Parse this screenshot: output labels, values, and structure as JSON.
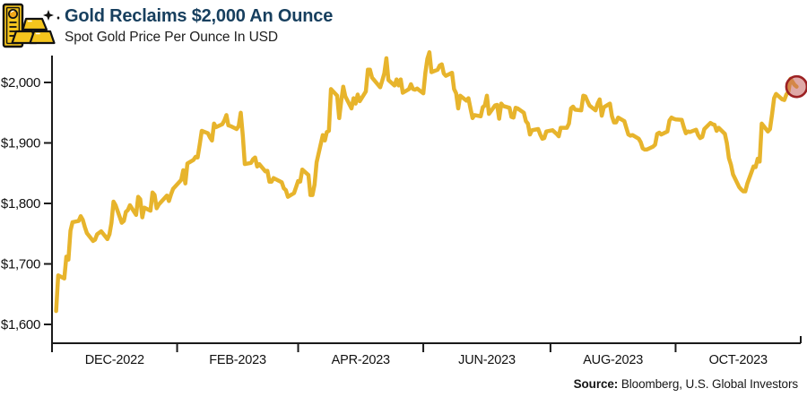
{
  "header": {
    "title": "Gold Reclaims $2,000 An Ounce",
    "subtitle": "Spot Gold Price Per Ounce In USD",
    "icon": "gold-bars-icon"
  },
  "footer": {
    "source_label": "Source:",
    "source_text": " Bloomberg, U.S. Global Investors"
  },
  "colors": {
    "title": "#173F5E",
    "axis": "#1a1a1a",
    "tick_label": "#111111",
    "line": "#E7B42C",
    "annotation_stroke": "#9C2123",
    "annotation_fill": "#C4635E",
    "icon_gold": "#F5C51D",
    "icon_outline": "#111111"
  },
  "chart_data": {
    "type": "line",
    "title": "Gold Reclaims $2,000 An Ounce",
    "subtitle": "Spot Gold Price Per Ounce In USD",
    "xlabel": "",
    "ylabel": "",
    "grid": false,
    "legend": "none",
    "x_range": [
      "2022-11-01",
      "2023-11-01"
    ],
    "x_range_days": [
      0,
      365
    ],
    "ylim": [
      1600,
      2060
    ],
    "y_axis": {
      "ticks": [
        {
          "text": "$2,000",
          "value": 2000
        },
        {
          "text": "$1,900",
          "value": 1900
        },
        {
          "text": "$1,800",
          "value": 1800
        },
        {
          "text": "$1,700",
          "value": 1700
        },
        {
          "text": "$1,600",
          "value": 1600
        }
      ]
    },
    "x_axis": {
      "boundary_tick_days": [
        0,
        61,
        120,
        181,
        243,
        304,
        365
      ],
      "labels": [
        {
          "text": "DEC-2022",
          "day": 30.5
        },
        {
          "text": "FEB-2023",
          "day": 90.5
        },
        {
          "text": "APR-2023",
          "day": 150.5
        },
        {
          "text": "JUN-2023",
          "day": 212
        },
        {
          "text": "AUG-2023",
          "day": 273.5
        },
        {
          "text": "OCT-2023",
          "day": 334.5
        }
      ]
    },
    "annotation": {
      "shape": "circle",
      "day": 363,
      "value": 1993
    },
    "series": [
      {
        "name": "Spot Gold Price (USD/oz)",
        "x_unit": "days since 2022-11-01",
        "points": [
          [
            2,
            1622
          ],
          [
            3,
            1681
          ],
          [
            6,
            1676
          ],
          [
            7,
            1712
          ],
          [
            8,
            1707
          ],
          [
            9,
            1755
          ],
          [
            10,
            1769
          ],
          [
            13,
            1771
          ],
          [
            14,
            1779
          ],
          [
            15,
            1773
          ],
          [
            16,
            1761
          ],
          [
            17,
            1751
          ],
          [
            20,
            1738
          ],
          [
            21,
            1740
          ],
          [
            22,
            1749
          ],
          [
            24,
            1754
          ],
          [
            27,
            1741
          ],
          [
            28,
            1749
          ],
          [
            29,
            1768
          ],
          [
            30,
            1803
          ],
          [
            31,
            1797
          ],
          [
            34,
            1768
          ],
          [
            35,
            1771
          ],
          [
            36,
            1786
          ],
          [
            37,
            1789
          ],
          [
            38,
            1797
          ],
          [
            41,
            1781
          ],
          [
            42,
            1811
          ],
          [
            43,
            1807
          ],
          [
            44,
            1777
          ],
          [
            45,
            1793
          ],
          [
            48,
            1788
          ],
          [
            49,
            1818
          ],
          [
            50,
            1814
          ],
          [
            51,
            1792
          ],
          [
            52,
            1798
          ],
          [
            56,
            1813
          ],
          [
            57,
            1804
          ],
          [
            58,
            1815
          ],
          [
            59,
            1824
          ],
          [
            63,
            1839
          ],
          [
            64,
            1855
          ],
          [
            65,
            1833
          ],
          [
            66,
            1866
          ],
          [
            69,
            1872
          ],
          [
            70,
            1877
          ],
          [
            71,
            1876
          ],
          [
            72,
            1897
          ],
          [
            73,
            1920
          ],
          [
            76,
            1916
          ],
          [
            77,
            1909
          ],
          [
            78,
            1904
          ],
          [
            79,
            1932
          ],
          [
            80,
            1926
          ],
          [
            83,
            1931
          ],
          [
            84,
            1937
          ],
          [
            85,
            1946
          ],
          [
            86,
            1929
          ],
          [
            87,
            1928
          ],
          [
            90,
            1923
          ],
          [
            91,
            1928
          ],
          [
            92,
            1950
          ],
          [
            93,
            1912
          ],
          [
            94,
            1865
          ],
          [
            97,
            1867
          ],
          [
            98,
            1873
          ],
          [
            99,
            1876
          ],
          [
            100,
            1861
          ],
          [
            101,
            1865
          ],
          [
            104,
            1853
          ],
          [
            105,
            1854
          ],
          [
            106,
            1836
          ],
          [
            107,
            1836
          ],
          [
            108,
            1842
          ],
          [
            112,
            1835
          ],
          [
            113,
            1825
          ],
          [
            114,
            1822
          ],
          [
            115,
            1811
          ],
          [
            118,
            1817
          ],
          [
            119,
            1827
          ],
          [
            120,
            1837
          ],
          [
            121,
            1836
          ],
          [
            122,
            1856
          ],
          [
            125,
            1847
          ],
          [
            126,
            1814
          ],
          [
            127,
            1814
          ],
          [
            128,
            1831
          ],
          [
            129,
            1868
          ],
          [
            132,
            1913
          ],
          [
            133,
            1904
          ],
          [
            134,
            1918
          ],
          [
            135,
            1920
          ],
          [
            136,
            1989
          ],
          [
            139,
            1978
          ],
          [
            140,
            1941
          ],
          [
            141,
            1970
          ],
          [
            142,
            1993
          ],
          [
            143,
            1977
          ],
          [
            146,
            1957
          ],
          [
            147,
            1974
          ],
          [
            148,
            1965
          ],
          [
            149,
            1980
          ],
          [
            150,
            1969
          ],
          [
            153,
            1985
          ],
          [
            154,
            2021
          ],
          [
            155,
            2021
          ],
          [
            156,
            2008
          ],
          [
            160,
            1992
          ],
          [
            161,
            2003
          ],
          [
            162,
            2015
          ],
          [
            163,
            2040
          ],
          [
            164,
            2004
          ],
          [
            167,
            1995
          ],
          [
            168,
            2005
          ],
          [
            169,
            1995
          ],
          [
            170,
            2005
          ],
          [
            171,
            1983
          ],
          [
            174,
            1989
          ],
          [
            175,
            1997
          ],
          [
            176,
            1989
          ],
          [
            177,
            1988
          ],
          [
            178,
            1990
          ],
          [
            181,
            1982
          ],
          [
            182,
            2016
          ],
          [
            183,
            2039
          ],
          [
            184,
            2050
          ],
          [
            185,
            2017
          ],
          [
            188,
            2021
          ],
          [
            189,
            2028
          ],
          [
            190,
            2030
          ],
          [
            191,
            2015
          ],
          [
            192,
            2011
          ],
          [
            195,
            2016
          ],
          [
            196,
            1989
          ],
          [
            197,
            1982
          ],
          [
            198,
            1957
          ],
          [
            199,
            1978
          ],
          [
            202,
            1970
          ],
          [
            203,
            1974
          ],
          [
            204,
            1957
          ],
          [
            205,
            1941
          ],
          [
            206,
            1946
          ],
          [
            209,
            1944
          ],
          [
            210,
            1959
          ],
          [
            211,
            1962
          ],
          [
            212,
            1978
          ],
          [
            213,
            1948
          ],
          [
            216,
            1962
          ],
          [
            217,
            1963
          ],
          [
            218,
            1940
          ],
          [
            219,
            1965
          ],
          [
            220,
            1961
          ],
          [
            223,
            1958
          ],
          [
            224,
            1943
          ],
          [
            225,
            1942
          ],
          [
            226,
            1958
          ],
          [
            227,
            1957
          ],
          [
            230,
            1950
          ],
          [
            231,
            1936
          ],
          [
            232,
            1932
          ],
          [
            233,
            1914
          ],
          [
            234,
            1921
          ],
          [
            237,
            1923
          ],
          [
            238,
            1914
          ],
          [
            239,
            1907
          ],
          [
            240,
            1908
          ],
          [
            241,
            1919
          ],
          [
            244,
            1921
          ],
          [
            246,
            1915
          ],
          [
            247,
            1911
          ],
          [
            248,
            1925
          ],
          [
            251,
            1925
          ],
          [
            252,
            1932
          ],
          [
            253,
            1957
          ],
          [
            254,
            1960
          ],
          [
            255,
            1955
          ],
          [
            258,
            1954
          ],
          [
            259,
            1978
          ],
          [
            260,
            1977
          ],
          [
            261,
            1969
          ],
          [
            262,
            1962
          ],
          [
            265,
            1954
          ],
          [
            266,
            1965
          ],
          [
            267,
            1972
          ],
          [
            268,
            1945
          ],
          [
            269,
            1959
          ],
          [
            272,
            1965
          ],
          [
            273,
            1944
          ],
          [
            274,
            1934
          ],
          [
            275,
            1934
          ],
          [
            276,
            1942
          ],
          [
            279,
            1936
          ],
          [
            280,
            1925
          ],
          [
            281,
            1914
          ],
          [
            282,
            1912
          ],
          [
            283,
            1913
          ],
          [
            286,
            1907
          ],
          [
            287,
            1901
          ],
          [
            288,
            1891
          ],
          [
            289,
            1889
          ],
          [
            290,
            1889
          ],
          [
            293,
            1894
          ],
          [
            294,
            1897
          ],
          [
            295,
            1915
          ],
          [
            296,
            1917
          ],
          [
            297,
            1914
          ],
          [
            300,
            1919
          ],
          [
            301,
            1937
          ],
          [
            302,
            1942
          ],
          [
            303,
            1940
          ],
          [
            304,
            1939
          ],
          [
            307,
            1938
          ],
          [
            308,
            1926
          ],
          [
            309,
            1916
          ],
          [
            310,
            1919
          ],
          [
            311,
            1918
          ],
          [
            314,
            1922
          ],
          [
            315,
            1913
          ],
          [
            316,
            1908
          ],
          [
            317,
            1910
          ],
          [
            318,
            1923
          ],
          [
            321,
            1933
          ],
          [
            322,
            1931
          ],
          [
            323,
            1930
          ],
          [
            324,
            1920
          ],
          [
            325,
            1925
          ],
          [
            328,
            1915
          ],
          [
            329,
            1900
          ],
          [
            330,
            1875
          ],
          [
            331,
            1864
          ],
          [
            332,
            1848
          ],
          [
            335,
            1827
          ],
          [
            336,
            1823
          ],
          [
            337,
            1820
          ],
          [
            338,
            1820
          ],
          [
            339,
            1833
          ],
          [
            342,
            1861
          ],
          [
            343,
            1860
          ],
          [
            344,
            1874
          ],
          [
            345,
            1869
          ],
          [
            346,
            1932
          ],
          [
            349,
            1919
          ],
          [
            350,
            1923
          ],
          [
            351,
            1947
          ],
          [
            352,
            1974
          ],
          [
            353,
            1981
          ],
          [
            356,
            1972
          ],
          [
            357,
            1971
          ],
          [
            358,
            1980
          ],
          [
            359,
            1985
          ],
          [
            360,
            2006
          ],
          [
            362,
            1996
          ],
          [
            363,
            1993
          ]
        ]
      }
    ]
  }
}
